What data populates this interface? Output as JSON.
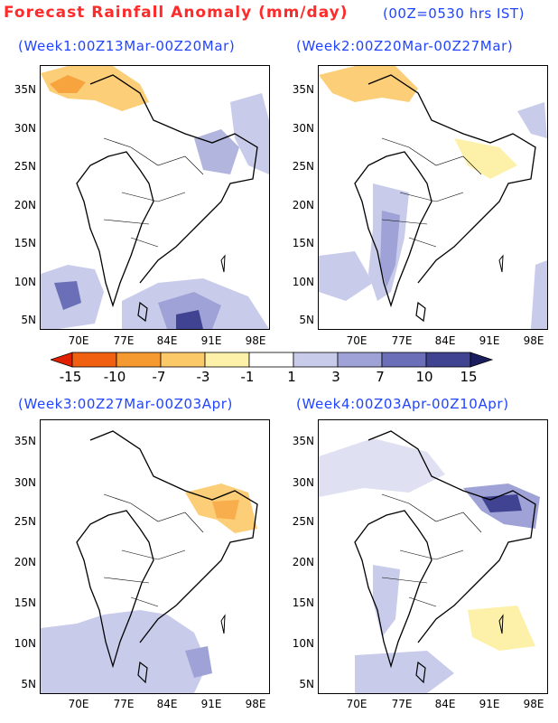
{
  "header": {
    "title": "Forecast Rainfall Anomaly (mm/day)",
    "subtitle": "(00Z=0530 hrs IST)"
  },
  "panels": [
    {
      "title": "(Week1:00Z13Mar-00Z20Mar)"
    },
    {
      "title": "(Week2:00Z20Mar-00Z27Mar)"
    },
    {
      "title": "(Week3:00Z27Mar-00Z03Apr)"
    },
    {
      "title": "(Week4:00Z03Apr-00Z10Apr)"
    }
  ],
  "axes": {
    "lat_labels": [
      "35N",
      "30N",
      "25N",
      "20N",
      "15N",
      "10N",
      "5N"
    ],
    "lon_labels": [
      "70E",
      "77E",
      "84E",
      "91E",
      "98E"
    ]
  },
  "colorbar": {
    "labels": [
      "-15",
      "-10",
      "-7",
      "-3",
      "-1",
      "1",
      "3",
      "7",
      "10",
      "15"
    ],
    "colors": [
      "#e02000",
      "#f06010",
      "#f59a30",
      "#fcc968",
      "#fdf0a8",
      "#ffffff",
      "#c9cbea",
      "#9fa2d6",
      "#6b6fb8",
      "#3f4391",
      "#1a1d5e"
    ]
  }
}
